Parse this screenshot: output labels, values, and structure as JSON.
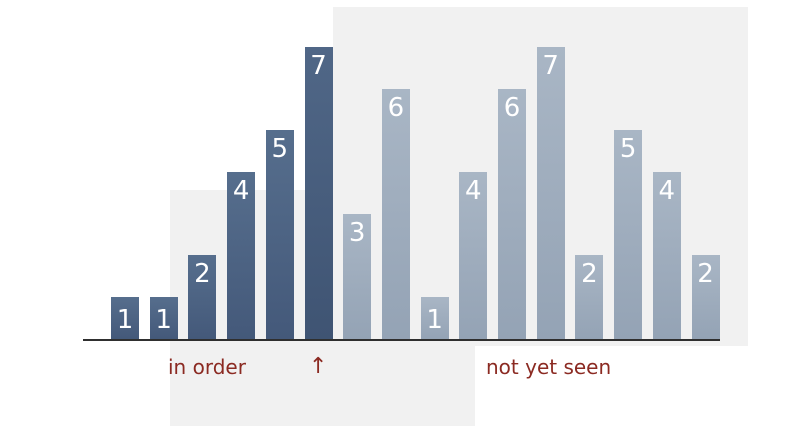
{
  "bars": [
    {
      "value": 1,
      "label": "1",
      "state": "sorted"
    },
    {
      "value": 1,
      "label": "1",
      "state": "sorted"
    },
    {
      "value": 2,
      "label": "2",
      "state": "sorted"
    },
    {
      "value": 4,
      "label": "4",
      "state": "sorted"
    },
    {
      "value": 5,
      "label": "5",
      "state": "sorted"
    },
    {
      "value": 7,
      "label": "7",
      "state": "sorted"
    },
    {
      "value": 3,
      "label": "3",
      "state": "unseen"
    },
    {
      "value": 6,
      "label": "6",
      "state": "unseen"
    },
    {
      "value": 1,
      "label": "1",
      "state": "unseen"
    },
    {
      "value": 4,
      "label": "4",
      "state": "unseen"
    },
    {
      "value": 6,
      "label": "6",
      "state": "unseen"
    },
    {
      "value": 7,
      "label": "7",
      "state": "unseen"
    },
    {
      "value": 2,
      "label": "2",
      "state": "unseen"
    },
    {
      "value": 5,
      "label": "5",
      "state": "unseen"
    },
    {
      "value": 4,
      "label": "4",
      "state": "unseen"
    },
    {
      "value": 2,
      "label": "2",
      "state": "unseen"
    }
  ],
  "labels": {
    "in_order": "in order",
    "arrow": "↑",
    "not_yet_seen": "not yet seen"
  },
  "colors": {
    "sorted": "#4b6282",
    "unseen": "#9fadbe",
    "label": "#8b2a22"
  }
}
